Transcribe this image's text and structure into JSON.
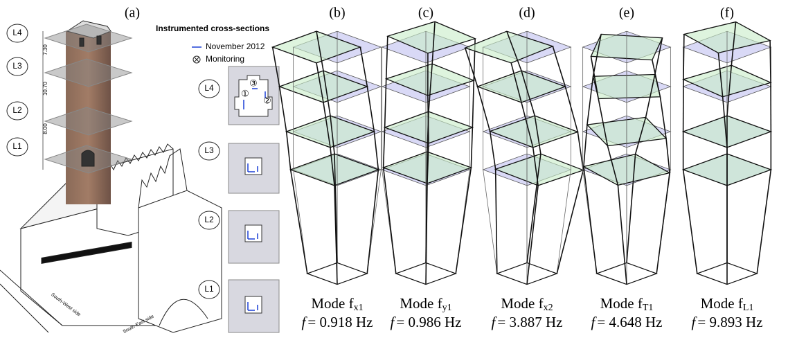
{
  "panel_a": {
    "label": "(a)",
    "levels": [
      "L4",
      "L3",
      "L2",
      "L1"
    ],
    "dimensions": [
      "7.30",
      "10.70",
      "8.00"
    ],
    "sides": [
      "South-West side",
      "South-East side"
    ]
  },
  "legend": {
    "title": "Instrumented cross-sections",
    "items": [
      "November 2012",
      "Monitoring"
    ]
  },
  "sections": [
    {
      "label": "L4",
      "sensors": [
        "①",
        "②",
        "③"
      ]
    },
    {
      "label": "L3"
    },
    {
      "label": "L2"
    },
    {
      "label": "L1"
    }
  ],
  "modes": [
    {
      "label": "(b)",
      "name": "Mode f",
      "subscript": "x1",
      "symbol": "f",
      "frequency": "= 0.918 Hz"
    },
    {
      "label": "(c)",
      "name": "Mode f",
      "subscript": "y1",
      "symbol": "f",
      "frequency": "= 0.986 Hz"
    },
    {
      "label": "(d)",
      "name": "Mode f",
      "subscript": "x2",
      "symbol": "f",
      "frequency": "= 3.887 Hz"
    },
    {
      "label": "(e)",
      "name": "Mode f",
      "subscript": "T1",
      "symbol": "f",
      "frequency": "= 4.648 Hz"
    },
    {
      "label": "(f)",
      "name": "Mode f",
      "subscript": "L1",
      "symbol": "f",
      "frequency": "= 9.893 Hz"
    }
  ]
}
